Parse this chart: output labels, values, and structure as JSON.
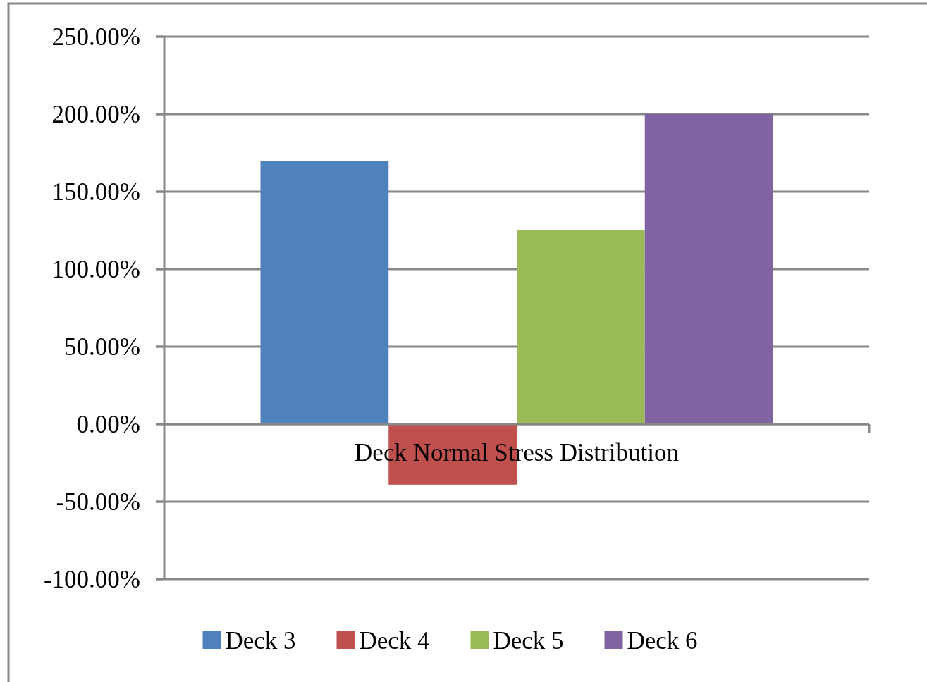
{
  "chart_data": {
    "type": "bar",
    "categories": [
      "Deck Normal Stress Distribution"
    ],
    "series": [
      {
        "name": "Deck 3",
        "color": "#4f81bd",
        "values": [
          170
        ]
      },
      {
        "name": "Deck 4",
        "color": "#c0504d",
        "values": [
          -39
        ]
      },
      {
        "name": "Deck 5",
        "color": "#9bbb59",
        "values": [
          125
        ]
      },
      {
        "name": "Deck 6",
        "color": "#8064a2",
        "values": [
          200
        ]
      }
    ],
    "ylim": [
      -100,
      250
    ],
    "yticks": [
      {
        "value": -100,
        "label": "-100.00%"
      },
      {
        "value": -50,
        "label": "-50.00%"
      },
      {
        "value": 0,
        "label": "0.00%"
      },
      {
        "value": 50,
        "label": "50.00%"
      },
      {
        "value": 100,
        "label": "100.00%"
      },
      {
        "value": 150,
        "label": "150.00%"
      },
      {
        "value": 200,
        "label": "200.00%"
      },
      {
        "value": 250,
        "label": "250.00%"
      }
    ],
    "grid": "y",
    "legend": "bottom"
  }
}
